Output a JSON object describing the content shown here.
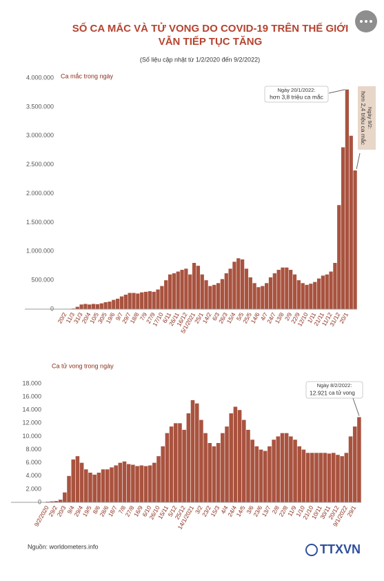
{
  "header": {
    "title": [
      "SỐ CA MẮC VÀ TỬ VONG DO COVID-19 TRÊN THẾ GIỚI",
      "VẪN TIẾP TỤC TĂNG"
    ],
    "subtitle": "(Số liệu cập nhật từ 1/2/2020 đến 9/2/2022)"
  },
  "chart_data": [
    {
      "type": "bar",
      "ylabel": "Ca mắc trong ngày",
      "color": "#a9533f",
      "grid": false,
      "ylim": [
        0,
        4000000
      ],
      "yticks": [
        0,
        {
          "value": 500000,
          "label": "500.000"
        },
        {
          "value": 1000000,
          "label": "1.000.000"
        },
        {
          "value": 1500000,
          "label": "1.500.000"
        },
        {
          "value": 2000000,
          "label": "2.000.000"
        },
        {
          "value": 2500000,
          "label": "2.500.000"
        },
        {
          "value": 3000000,
          "label": "3.000.000"
        },
        {
          "value": 3500000,
          "label": "3.500.000"
        },
        {
          "value": 4000000,
          "label": "4.000.000"
        }
      ],
      "categories": [
        null,
        "20/2",
        null,
        "11/3",
        null,
        "31/3",
        null,
        "20/4",
        null,
        "10/5",
        null,
        "30/5",
        null,
        "19/6",
        null,
        "9/7",
        null,
        "29/7",
        null,
        "18/8",
        null,
        "7/9",
        null,
        "27/9",
        null,
        "17/10",
        null,
        "6/11",
        null,
        "26/11",
        null,
        "16/12",
        null,
        "5/1/2021",
        null,
        "25/1",
        null,
        "14/2",
        null,
        "6/3",
        null,
        "26/3",
        null,
        "15/4",
        null,
        "5/5",
        null,
        "25/5",
        null,
        "14/6",
        null,
        "4/7",
        null,
        "24/7",
        null,
        "13/8",
        null,
        "2/9",
        null,
        "22/9",
        null,
        "12/10",
        null,
        "1/11",
        null,
        "21/11",
        null,
        "11/12",
        null,
        "31/12",
        null,
        "20/1",
        null,
        null
      ],
      "values": [
        3000,
        1000,
        2000,
        10000,
        40000,
        80000,
        90000,
        80000,
        90000,
        85000,
        100000,
        120000,
        130000,
        160000,
        180000,
        220000,
        250000,
        280000,
        280000,
        270000,
        290000,
        300000,
        310000,
        300000,
        340000,
        400000,
        500000,
        600000,
        620000,
        650000,
        680000,
        700000,
        600000,
        800000,
        750000,
        600000,
        500000,
        400000,
        420000,
        450000,
        520000,
        620000,
        700000,
        820000,
        880000,
        860000,
        700000,
        550000,
        450000,
        380000,
        400000,
        450000,
        550000,
        620000,
        680000,
        720000,
        720000,
        680000,
        600000,
        500000,
        450000,
        420000,
        440000,
        470000,
        530000,
        580000,
        600000,
        650000,
        800000,
        1800000,
        2800000,
        3800000,
        3000000,
        2400000
      ],
      "annotations": [
        [
          "Ngày 20/1/2022:",
          "hơn 3,8 triệu ca mắc"
        ],
        [
          "Ngày 9/2:",
          "hơn 2,4 triệu ca mắc"
        ]
      ]
    },
    {
      "type": "bar",
      "ylabel": "Ca tử vong trong ngày",
      "color": "#a9533f",
      "grid": false,
      "ylim": [
        0,
        18000
      ],
      "yticks": [
        0,
        {
          "value": 2000,
          "label": "2.000"
        },
        {
          "value": 4000,
          "label": "4.000"
        },
        {
          "value": 6000,
          "label": "6.000"
        },
        {
          "value": 8000,
          "label": "8.000"
        },
        {
          "value": 10000,
          "label": "10.000"
        },
        {
          "value": 12000,
          "label": "12.000"
        },
        {
          "value": 14000,
          "label": "14.000"
        },
        {
          "value": 16000,
          "label": "16.000"
        },
        {
          "value": 18000,
          "label": "18.000"
        }
      ],
      "categories": [
        "9/2/2020",
        null,
        "29/2",
        null,
        "20/3",
        null,
        "9/4",
        null,
        "29/4",
        null,
        "19/5",
        null,
        "8/6",
        null,
        "28/6",
        null,
        "18/7",
        null,
        "7/8",
        null,
        "27/8",
        null,
        "16/9",
        null,
        "6/10",
        null,
        "26/10",
        null,
        "15/11",
        null,
        "5/12",
        null,
        "25/12",
        null,
        "14/1/2021",
        null,
        "3/2",
        null,
        "23/2",
        null,
        "15/3",
        null,
        "4/4",
        null,
        "24/4",
        null,
        "14/5",
        null,
        "3/6",
        null,
        "23/6",
        null,
        "13/7",
        null,
        "2/8",
        null,
        "22/8",
        null,
        "11/9",
        null,
        "1/10",
        null,
        "21/10",
        null,
        "10/11",
        null,
        "30/11",
        null,
        "20/12",
        null,
        "9/1/2022",
        null,
        "29/1",
        null
      ],
      "values": [
        100,
        150,
        200,
        400,
        1500,
        4000,
        6500,
        7000,
        6000,
        5000,
        4500,
        4200,
        4500,
        5000,
        5000,
        5300,
        5600,
        6000,
        6200,
        5800,
        5700,
        5500,
        5600,
        5500,
        5600,
        6000,
        7000,
        8500,
        10500,
        11500,
        12000,
        12000,
        11000,
        13500,
        15500,
        15000,
        12500,
        10500,
        9000,
        8500,
        9000,
        10500,
        11500,
        13500,
        14500,
        14000,
        12500,
        11000,
        9500,
        8500,
        8000,
        7800,
        8500,
        9500,
        10000,
        10500,
        10500,
        10000,
        9500,
        8500,
        8000,
        7500,
        7500,
        7500,
        7500,
        7500,
        7400,
        7500,
        7200,
        7000,
        7500,
        10000,
        11500,
        12921
      ],
      "value_labels": [
        null,
        null,
        null,
        null,
        null,
        null,
        null,
        null,
        null,
        null,
        null,
        null,
        null,
        null,
        null,
        null,
        null,
        null,
        null,
        null,
        null,
        null,
        null,
        null,
        null,
        null,
        null,
        null,
        null,
        null,
        null,
        null,
        null,
        null,
        null,
        null,
        null,
        null,
        null,
        null,
        null,
        null,
        null,
        null,
        null,
        null,
        null,
        null,
        null,
        null,
        null,
        null,
        null,
        null,
        null,
        null,
        null,
        null,
        null,
        null,
        null,
        null,
        null,
        null,
        null,
        null,
        null,
        null,
        null,
        null,
        null,
        null,
        null,
        "12.921"
      ],
      "annotations": [
        [
          "Ngày 8/2/2022:",
          "ca tử vong"
        ]
      ]
    }
  ],
  "source": "Nguồn: worldometers.info",
  "logo": "TTXVN"
}
